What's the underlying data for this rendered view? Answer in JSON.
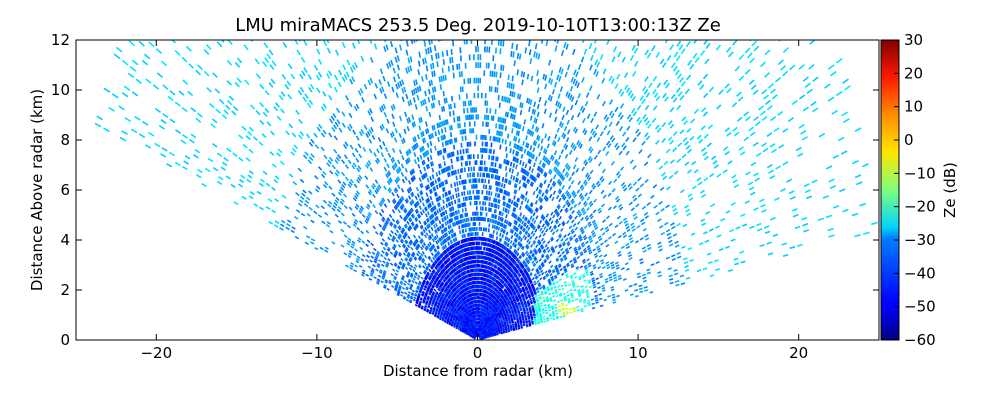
{
  "chart_data": {
    "type": "heatmap",
    "title": "LMU miraMACS 253.5 Deg. 2019-10-10T13:00:13Z  Ze",
    "xlabel": "Distance from radar (km)",
    "ylabel": "Distance Above radar  (km)",
    "xlim": [
      -25,
      25
    ],
    "ylim": [
      0,
      12
    ],
    "x_ticks": [
      "−20",
      "−10",
      "0",
      "10",
      "20"
    ],
    "x_tick_values": [
      -20,
      -10,
      0,
      10,
      20
    ],
    "y_ticks": [
      "0",
      "2",
      "4",
      "6",
      "8",
      "10",
      "12"
    ],
    "y_tick_values": [
      0,
      2,
      4,
      6,
      8,
      10,
      12
    ],
    "grid": false,
    "colorbar": {
      "label": "Ze (dB)",
      "range": [
        -60,
        30
      ],
      "colormap": "jet",
      "ticks": [
        "30",
        "20",
        "10",
        "0",
        "−10",
        "−20",
        "−30",
        "−40",
        "−50",
        "−60"
      ],
      "tick_values": [
        30,
        20,
        10,
        0,
        -10,
        -20,
        -30,
        -40,
        -50,
        -60
      ]
    },
    "scan": {
      "kind": "RHI sector",
      "elevation_range_deg": [
        10,
        160
      ],
      "max_range_km": 25
    },
    "reflectivity_regions": [
      {
        "description": "far range speckle",
        "range_km": [
          13,
          25
        ],
        "ze_db": -30
      },
      {
        "description": "mid range speckle",
        "range_km": [
          6,
          13
        ],
        "ze_db": -38
      },
      {
        "description": "near range echo",
        "range_km": [
          0,
          4
        ],
        "ze_db": -48
      },
      {
        "description": "low-level echo near x=5 km",
        "x_km": [
          3.5,
          7
        ],
        "z_km": [
          0.8,
          2.8
        ],
        "ze_db": -25
      },
      {
        "description": "core near x=5.5 km",
        "x_km": 5.5,
        "z_km": 1.2,
        "ze_db": -10
      }
    ]
  }
}
